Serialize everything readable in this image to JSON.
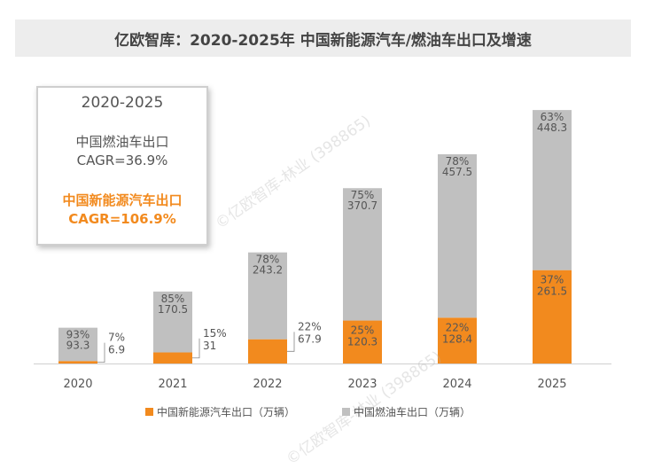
{
  "colors": {
    "ev": "#f28a1e",
    "ice": "#c0c0c0",
    "axis": "#d0d0d0",
    "text": "#555555"
  },
  "watermark": "©亿欧智库-林业 (398865)",
  "cagr_box": {
    "period": "2020-2025",
    "ice_label": "中国燃油车出口",
    "ice_cagr": "CAGR=36.9%",
    "ev_label": "中国新能源汽车出口",
    "ev_cagr": "CAGR=106.9%"
  },
  "chart_data": {
    "type": "bar",
    "stacked": true,
    "title": "亿欧智库：2020-2025年 中国新能源汽车/燃油车出口及增速",
    "categories": [
      "2020",
      "2021",
      "2022",
      "2023",
      "2024",
      "2025"
    ],
    "series": [
      {
        "name": "中国新能源汽车出口（万辆）",
        "values": [
          6.9,
          31,
          67.9,
          120.3,
          128.4,
          261.5
        ],
        "value_labels": [
          "6.9",
          "31",
          "67.9",
          "120.3",
          "128.4",
          "261.5"
        ],
        "share_labels": [
          "7%",
          "15%",
          "22%",
          "25%",
          "22%",
          "37%"
        ]
      },
      {
        "name": "中国燃油车出口（万辆）",
        "values": [
          93.3,
          170.5,
          243.2,
          370.7,
          457.5,
          448.3
        ],
        "value_labels": [
          "93.3",
          "170.5",
          "243.2",
          "370.7",
          "457.5",
          "448.3"
        ],
        "share_labels": [
          "93%",
          "85%",
          "78%",
          "75%",
          "78%",
          "63%"
        ]
      }
    ],
    "ylim": [
      0,
      720
    ],
    "legend_position": "bottom-center"
  }
}
